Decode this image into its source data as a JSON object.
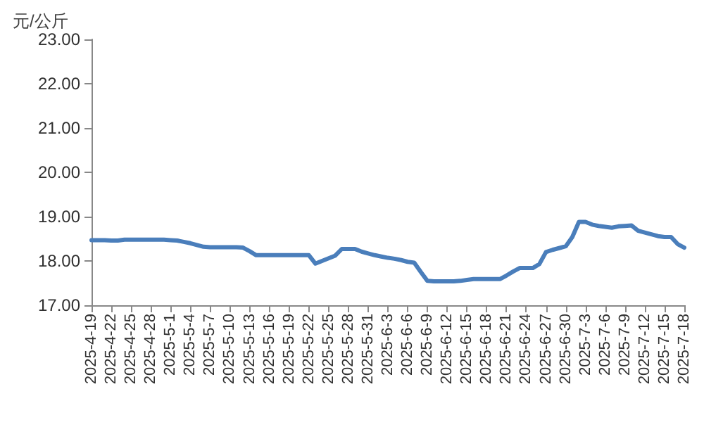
{
  "chart_data": {
    "type": "line",
    "ylabel": "元/公斤",
    "categories": [
      "2025-4-19",
      null,
      null,
      "2025-4-22",
      null,
      null,
      "2025-4-25",
      null,
      null,
      "2025-4-28",
      null,
      null,
      "2025-5-1",
      null,
      null,
      "2025-5-4",
      null,
      null,
      "2025-5-7",
      null,
      null,
      "2025-5-10",
      null,
      null,
      "2025-5-13",
      null,
      null,
      "2025-5-16",
      null,
      null,
      "2025-5-19",
      null,
      null,
      "2025-5-22",
      null,
      null,
      "2025-5-25",
      null,
      null,
      "2025-5-28",
      null,
      null,
      "2025-5-31",
      null,
      null,
      "2025-6-3",
      null,
      null,
      "2025-6-6",
      null,
      null,
      "2025-6-9",
      null,
      null,
      "2025-6-12",
      null,
      null,
      "2025-6-15",
      null,
      null,
      "2025-6-18",
      null,
      null,
      "2025-6-21",
      null,
      null,
      "2025-6-24",
      null,
      null,
      "2025-6-27",
      null,
      null,
      "2025-6-30",
      null,
      null,
      "2025-7-3",
      null,
      null,
      "2025-7-6",
      null,
      null,
      "2025-7-9",
      null,
      null,
      "2025-7-12",
      null,
      null,
      "2025-7-15",
      null,
      null,
      "2025-7-18"
    ],
    "series": [
      {
        "color": "#4a7ebb",
        "values": [
          18.47,
          18.47,
          18.47,
          18.46,
          18.46,
          18.48,
          18.48,
          18.48,
          18.48,
          18.48,
          18.48,
          18.48,
          18.47,
          18.46,
          18.43,
          18.4,
          18.36,
          18.32,
          18.31,
          18.31,
          18.31,
          18.31,
          18.31,
          18.3,
          18.22,
          18.13,
          18.13,
          18.13,
          18.13,
          18.13,
          18.13,
          18.13,
          18.13,
          18.13,
          17.94,
          18.0,
          18.06,
          18.12,
          18.27,
          18.27,
          18.27,
          18.21,
          18.17,
          18.13,
          18.1,
          18.07,
          18.05,
          18.02,
          17.98,
          17.96,
          17.75,
          17.55,
          17.54,
          17.54,
          17.54,
          17.54,
          17.55,
          17.57,
          17.59,
          17.59,
          17.59,
          17.59,
          17.59,
          17.67,
          17.76,
          17.84,
          17.84,
          17.84,
          17.93,
          18.2,
          18.25,
          18.29,
          18.33,
          18.54,
          18.88,
          18.88,
          18.82,
          18.79,
          18.77,
          18.75,
          18.78,
          18.79,
          18.8,
          18.68,
          18.64,
          18.6,
          18.56,
          18.54,
          18.54,
          18.38,
          18.3
        ]
      }
    ],
    "ylim": [
      17,
      23
    ],
    "yticks": [
      {
        "value": 17,
        "label": "17.00"
      },
      {
        "value": 18,
        "label": "18.00"
      },
      {
        "value": 19,
        "label": "19.00"
      },
      {
        "value": 20,
        "label": "20.00"
      },
      {
        "value": 21,
        "label": "21.00"
      },
      {
        "value": 22,
        "label": "22.00"
      },
      {
        "value": 23,
        "label": "23.00"
      }
    ],
    "grid": false,
    "marker": "none",
    "line_style": "solid"
  }
}
